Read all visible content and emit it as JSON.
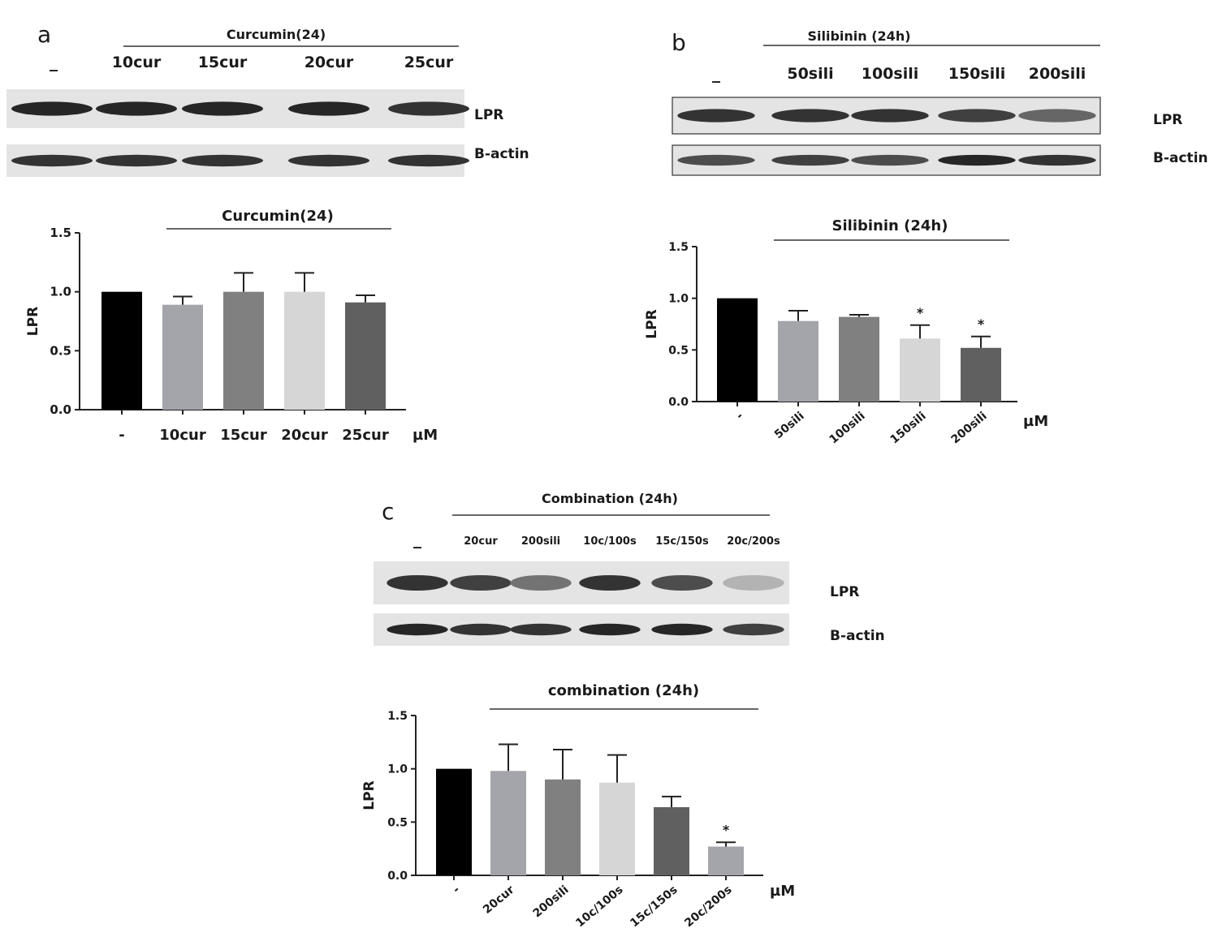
{
  "panels": [
    {
      "letter": "a",
      "blot": {
        "treatment": "Curcumin(24)",
        "control_label": "_",
        "lane_labels": [
          "10cur",
          "15cur",
          "20cur",
          "25cur"
        ],
        "band_labels": [
          "LPR",
          "B-actin"
        ],
        "lpr_intensity": [
          0.85,
          0.85,
          0.85,
          0.85,
          0.8
        ],
        "actin_intensity": [
          0.8,
          0.8,
          0.8,
          0.8,
          0.8
        ]
      }
    },
    {
      "letter": "b",
      "blot": {
        "treatment": "Silibinin (24h)",
        "control_label": "_",
        "lane_labels": [
          "50sili",
          "100sili",
          "150sili",
          "200sili"
        ],
        "band_labels": [
          "LPR",
          "B-actin"
        ],
        "lpr_intensity": [
          0.8,
          0.8,
          0.8,
          0.75,
          0.6
        ],
        "actin_intensity": [
          0.7,
          0.75,
          0.7,
          0.85,
          0.8
        ]
      }
    },
    {
      "letter": "c",
      "blot": {
        "treatment": "Combination (24h)",
        "control_label": "_",
        "lane_labels": [
          "20cur",
          "200sili",
          "10c/100s",
          "15c/150s",
          "20c/200s"
        ],
        "band_labels": [
          "LPR",
          "B-actin"
        ],
        "lpr_intensity": [
          0.8,
          0.75,
          0.55,
          0.8,
          0.7,
          0.3
        ],
        "actin_intensity": [
          0.85,
          0.8,
          0.8,
          0.85,
          0.85,
          0.75
        ]
      }
    }
  ],
  "chart_data": [
    {
      "type": "bar",
      "title": "Curcumin(24)",
      "ylabel": "LPR",
      "xunit": "µM",
      "categories": [
        "-",
        "10cur",
        "15cur",
        "20cur",
        "25cur"
      ],
      "values": [
        1.0,
        0.89,
        1.0,
        1.0,
        0.91
      ],
      "errors": [
        0,
        0.07,
        0.16,
        0.16,
        0.06
      ],
      "significance": [
        "",
        "",
        "",
        "",
        ""
      ],
      "ylim": [
        0,
        1.5
      ],
      "yticks": [
        "0.0",
        "0.5",
        "1.0",
        "1.5"
      ],
      "bar_colors": [
        "#000000",
        "#a4a4ab",
        "#808080",
        "#d6d6d6",
        "#606060"
      ],
      "rotated_labels": false
    },
    {
      "type": "bar",
      "title": "Silibinin (24h)",
      "ylabel": "LPR",
      "xunit": "µM",
      "categories": [
        "-",
        "50sili",
        "100sili",
        "150sili",
        "200sili"
      ],
      "values": [
        1.0,
        0.78,
        0.82,
        0.61,
        0.52
      ],
      "errors": [
        0,
        0.1,
        0.02,
        0.13,
        0.11
      ],
      "significance": [
        "",
        "",
        "",
        "*",
        "*"
      ],
      "ylim": [
        0,
        1.5
      ],
      "yticks": [
        "0.0",
        "0.5",
        "1.0",
        "1.5"
      ],
      "bar_colors": [
        "#000000",
        "#a4a4ab",
        "#808080",
        "#d6d6d6",
        "#606060"
      ],
      "rotated_labels": true
    },
    {
      "type": "bar",
      "title": "combination (24h)",
      "ylabel": "LPR",
      "xunit": "µM",
      "categories": [
        "-",
        "20cur",
        "200sili",
        "10c/100s",
        "15c/150s",
        "20c/200s"
      ],
      "values": [
        1.0,
        0.98,
        0.9,
        0.87,
        0.64,
        0.27
      ],
      "errors": [
        0,
        0.25,
        0.28,
        0.26,
        0.1,
        0.04
      ],
      "significance": [
        "",
        "",
        "",
        "",
        "",
        "*"
      ],
      "ylim": [
        0,
        1.5
      ],
      "yticks": [
        "0.0",
        "0.5",
        "1.0",
        "1.5"
      ],
      "bar_colors": [
        "#000000",
        "#a4a4ab",
        "#808080",
        "#d6d6d6",
        "#606060",
        "#a4a4ab"
      ],
      "rotated_labels": true
    }
  ]
}
